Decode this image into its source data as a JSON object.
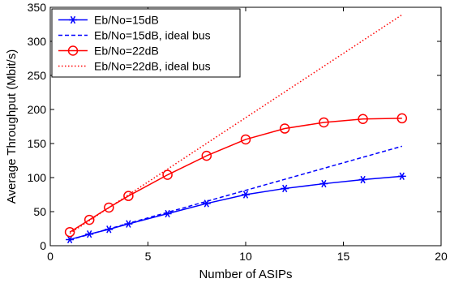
{
  "chart_data": {
    "type": "line",
    "xlabel": "Number of ASIPs",
    "ylabel": "Average Throughput (Mbit/s)",
    "xlim": [
      0,
      20
    ],
    "ylim": [
      0,
      350
    ],
    "xticks": [
      0,
      5,
      10,
      15,
      20
    ],
    "yticks": [
      0,
      50,
      100,
      150,
      200,
      250,
      300,
      350
    ],
    "grid": false,
    "legend_position": "top-left",
    "series": [
      {
        "name": "Eb/No=15dB",
        "color": "#0000ff",
        "line": "solid",
        "marker": "asterisk",
        "x": [
          1,
          2,
          3,
          4,
          6,
          8,
          10,
          12,
          14,
          16,
          18
        ],
        "y": [
          9,
          17,
          24,
          32,
          47,
          62,
          75,
          84,
          91,
          97,
          102
        ]
      },
      {
        "name": "Eb/No=15dB, ideal bus",
        "color": "#0000ff",
        "line": "dashed",
        "marker": "none",
        "x": [
          1,
          18
        ],
        "y": [
          8.5,
          146
        ]
      },
      {
        "name": "Eb/No=22dB",
        "color": "#ff0000",
        "line": "solid",
        "marker": "circle",
        "x": [
          1,
          2,
          3,
          4,
          6,
          8,
          10,
          12,
          14,
          16,
          18
        ],
        "y": [
          20,
          38,
          56,
          73,
          104,
          132,
          156,
          172,
          181,
          186,
          187
        ]
      },
      {
        "name": "Eb/No=22dB, ideal bus",
        "color": "#ff0000",
        "line": "dotted",
        "marker": "none",
        "x": [
          1,
          18
        ],
        "y": [
          18,
          339
        ]
      }
    ]
  }
}
